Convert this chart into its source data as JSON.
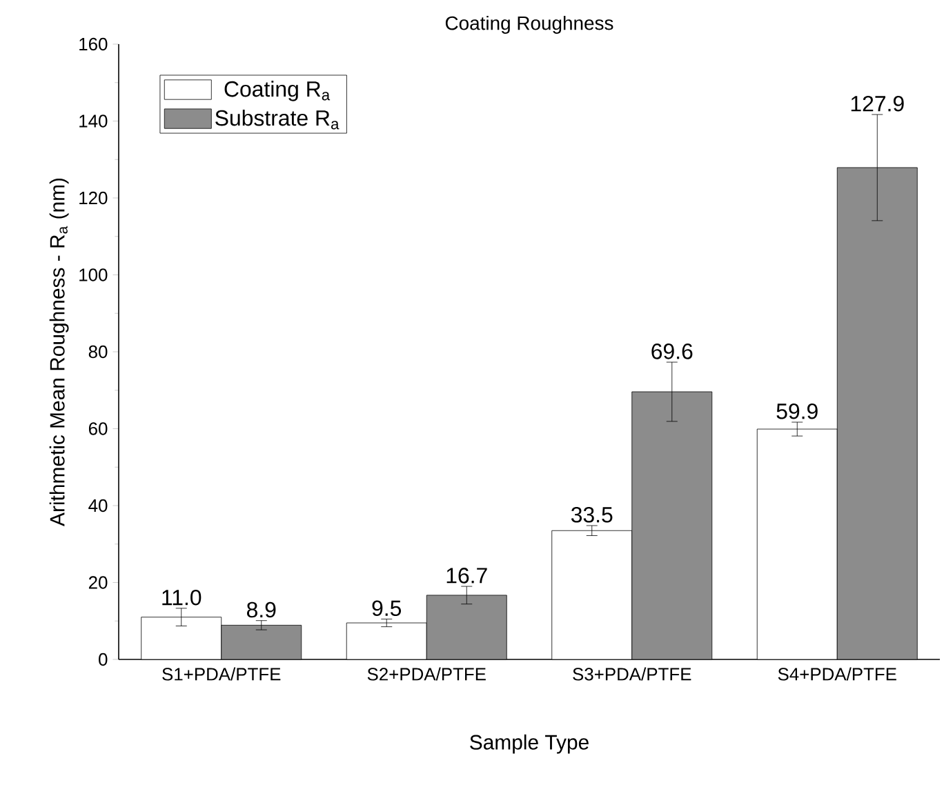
{
  "chart_data": {
    "type": "bar",
    "title": "Coating Roughness",
    "xlabel": "Sample Type",
    "ylabel": "Arithmetic Mean Roughness - R$_{a}$ (nm)",
    "categories": [
      "S1+PDA/PTFE",
      "S2+PDA/PTFE",
      "S3+PDA/PTFE",
      "S4+PDA/PTFE"
    ],
    "series": [
      {
        "name": "Coating R$_{a}$",
        "color": "#ffffff",
        "values": [
          11.0,
          9.5,
          33.5,
          59.9
        ],
        "errors": [
          2.3,
          1.0,
          1.3,
          1.8
        ],
        "value_labels": [
          "11.0",
          "9.5",
          "33.5",
          "59.9"
        ]
      },
      {
        "name": "Substrate R$_{a}$",
        "color": "#8c8c8c",
        "values": [
          8.9,
          16.7,
          69.6,
          127.9
        ],
        "errors": [
          1.2,
          2.3,
          7.7,
          13.8
        ],
        "value_labels": [
          "8.9",
          "16.7",
          "69.6",
          "127.9"
        ]
      }
    ],
    "ylim": [
      0,
      160
    ],
    "yticks": [
      0,
      20,
      40,
      60,
      80,
      100,
      120,
      140,
      160
    ],
    "grid": false,
    "legend": "top left"
  }
}
